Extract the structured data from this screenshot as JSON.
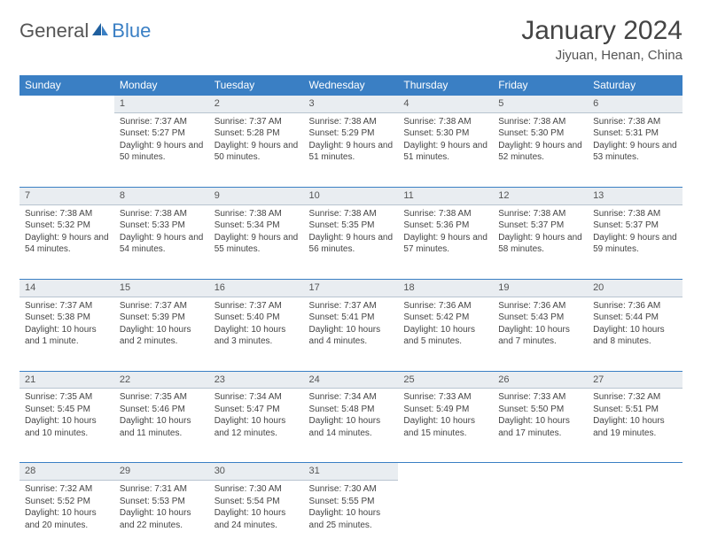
{
  "logo": {
    "general": "General",
    "blue": "Blue"
  },
  "title": "January 2024",
  "location": "Jiyuan, Henan, China",
  "colors": {
    "header_bg": "#3a7fc4",
    "header_text": "#ffffff",
    "daynum_bg": "#e9edf1",
    "rule": "#3a7fc4",
    "text": "#444444"
  },
  "weekdays": [
    "Sunday",
    "Monday",
    "Tuesday",
    "Wednesday",
    "Thursday",
    "Friday",
    "Saturday"
  ],
  "weeks": [
    {
      "nums": [
        "",
        "1",
        "2",
        "3",
        "4",
        "5",
        "6"
      ],
      "cells": [
        null,
        {
          "sr": "Sunrise: 7:37 AM",
          "ss": "Sunset: 5:27 PM",
          "dl": "Daylight: 9 hours and 50 minutes."
        },
        {
          "sr": "Sunrise: 7:37 AM",
          "ss": "Sunset: 5:28 PM",
          "dl": "Daylight: 9 hours and 50 minutes."
        },
        {
          "sr": "Sunrise: 7:38 AM",
          "ss": "Sunset: 5:29 PM",
          "dl": "Daylight: 9 hours and 51 minutes."
        },
        {
          "sr": "Sunrise: 7:38 AM",
          "ss": "Sunset: 5:30 PM",
          "dl": "Daylight: 9 hours and 51 minutes."
        },
        {
          "sr": "Sunrise: 7:38 AM",
          "ss": "Sunset: 5:30 PM",
          "dl": "Daylight: 9 hours and 52 minutes."
        },
        {
          "sr": "Sunrise: 7:38 AM",
          "ss": "Sunset: 5:31 PM",
          "dl": "Daylight: 9 hours and 53 minutes."
        }
      ]
    },
    {
      "nums": [
        "7",
        "8",
        "9",
        "10",
        "11",
        "12",
        "13"
      ],
      "cells": [
        {
          "sr": "Sunrise: 7:38 AM",
          "ss": "Sunset: 5:32 PM",
          "dl": "Daylight: 9 hours and 54 minutes."
        },
        {
          "sr": "Sunrise: 7:38 AM",
          "ss": "Sunset: 5:33 PM",
          "dl": "Daylight: 9 hours and 54 minutes."
        },
        {
          "sr": "Sunrise: 7:38 AM",
          "ss": "Sunset: 5:34 PM",
          "dl": "Daylight: 9 hours and 55 minutes."
        },
        {
          "sr": "Sunrise: 7:38 AM",
          "ss": "Sunset: 5:35 PM",
          "dl": "Daylight: 9 hours and 56 minutes."
        },
        {
          "sr": "Sunrise: 7:38 AM",
          "ss": "Sunset: 5:36 PM",
          "dl": "Daylight: 9 hours and 57 minutes."
        },
        {
          "sr": "Sunrise: 7:38 AM",
          "ss": "Sunset: 5:37 PM",
          "dl": "Daylight: 9 hours and 58 minutes."
        },
        {
          "sr": "Sunrise: 7:38 AM",
          "ss": "Sunset: 5:37 PM",
          "dl": "Daylight: 9 hours and 59 minutes."
        }
      ]
    },
    {
      "nums": [
        "14",
        "15",
        "16",
        "17",
        "18",
        "19",
        "20"
      ],
      "cells": [
        {
          "sr": "Sunrise: 7:37 AM",
          "ss": "Sunset: 5:38 PM",
          "dl": "Daylight: 10 hours and 1 minute."
        },
        {
          "sr": "Sunrise: 7:37 AM",
          "ss": "Sunset: 5:39 PM",
          "dl": "Daylight: 10 hours and 2 minutes."
        },
        {
          "sr": "Sunrise: 7:37 AM",
          "ss": "Sunset: 5:40 PM",
          "dl": "Daylight: 10 hours and 3 minutes."
        },
        {
          "sr": "Sunrise: 7:37 AM",
          "ss": "Sunset: 5:41 PM",
          "dl": "Daylight: 10 hours and 4 minutes."
        },
        {
          "sr": "Sunrise: 7:36 AM",
          "ss": "Sunset: 5:42 PM",
          "dl": "Daylight: 10 hours and 5 minutes."
        },
        {
          "sr": "Sunrise: 7:36 AM",
          "ss": "Sunset: 5:43 PM",
          "dl": "Daylight: 10 hours and 7 minutes."
        },
        {
          "sr": "Sunrise: 7:36 AM",
          "ss": "Sunset: 5:44 PM",
          "dl": "Daylight: 10 hours and 8 minutes."
        }
      ]
    },
    {
      "nums": [
        "21",
        "22",
        "23",
        "24",
        "25",
        "26",
        "27"
      ],
      "cells": [
        {
          "sr": "Sunrise: 7:35 AM",
          "ss": "Sunset: 5:45 PM",
          "dl": "Daylight: 10 hours and 10 minutes."
        },
        {
          "sr": "Sunrise: 7:35 AM",
          "ss": "Sunset: 5:46 PM",
          "dl": "Daylight: 10 hours and 11 minutes."
        },
        {
          "sr": "Sunrise: 7:34 AM",
          "ss": "Sunset: 5:47 PM",
          "dl": "Daylight: 10 hours and 12 minutes."
        },
        {
          "sr": "Sunrise: 7:34 AM",
          "ss": "Sunset: 5:48 PM",
          "dl": "Daylight: 10 hours and 14 minutes."
        },
        {
          "sr": "Sunrise: 7:33 AM",
          "ss": "Sunset: 5:49 PM",
          "dl": "Daylight: 10 hours and 15 minutes."
        },
        {
          "sr": "Sunrise: 7:33 AM",
          "ss": "Sunset: 5:50 PM",
          "dl": "Daylight: 10 hours and 17 minutes."
        },
        {
          "sr": "Sunrise: 7:32 AM",
          "ss": "Sunset: 5:51 PM",
          "dl": "Daylight: 10 hours and 19 minutes."
        }
      ]
    },
    {
      "nums": [
        "28",
        "29",
        "30",
        "31",
        "",
        "",
        ""
      ],
      "cells": [
        {
          "sr": "Sunrise: 7:32 AM",
          "ss": "Sunset: 5:52 PM",
          "dl": "Daylight: 10 hours and 20 minutes."
        },
        {
          "sr": "Sunrise: 7:31 AM",
          "ss": "Sunset: 5:53 PM",
          "dl": "Daylight: 10 hours and 22 minutes."
        },
        {
          "sr": "Sunrise: 7:30 AM",
          "ss": "Sunset: 5:54 PM",
          "dl": "Daylight: 10 hours and 24 minutes."
        },
        {
          "sr": "Sunrise: 7:30 AM",
          "ss": "Sunset: 5:55 PM",
          "dl": "Daylight: 10 hours and 25 minutes."
        },
        null,
        null,
        null
      ]
    }
  ]
}
